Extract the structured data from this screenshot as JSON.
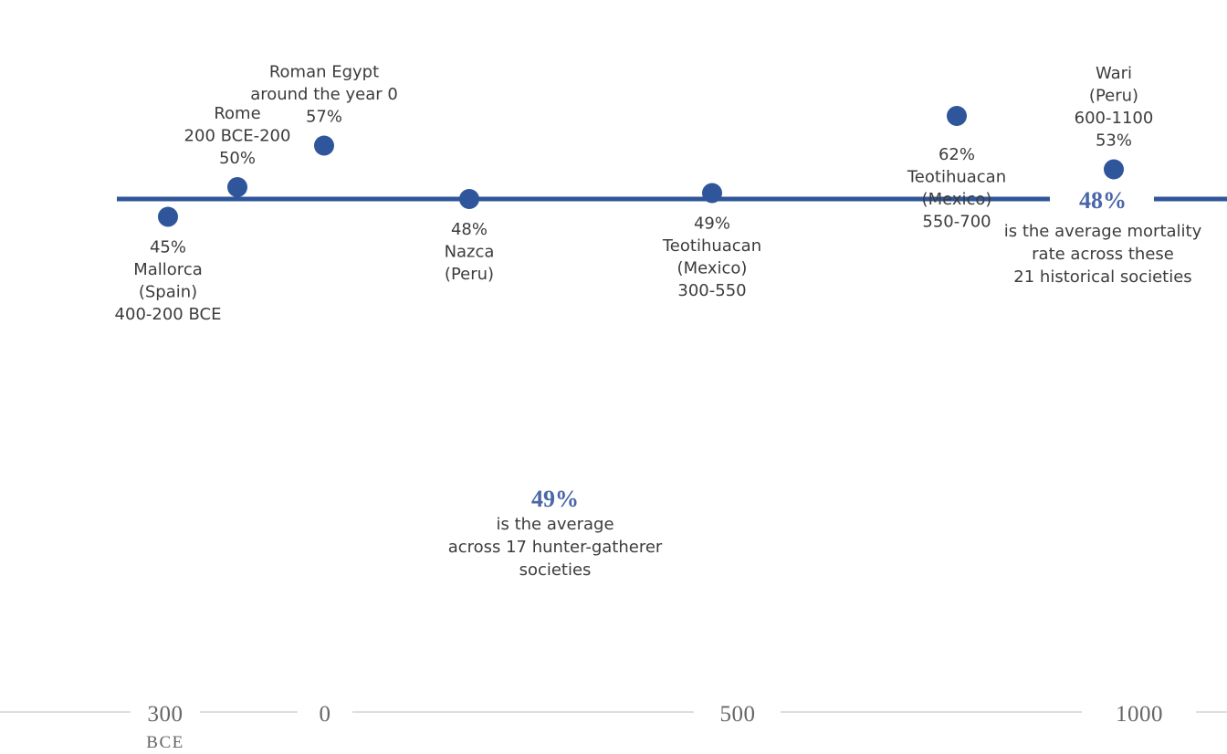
{
  "chart_data": {
    "type": "scatter",
    "x_ticks": [
      "300",
      "0",
      "500",
      "1000"
    ],
    "x_tick_sub": "BCE",
    "colors": {
      "point": "#2f559a",
      "line": "#2f559a",
      "highlight": "#4a66a8",
      "axis": "#bdbdbd"
    },
    "points": [
      {
        "value": 45,
        "lines": [
          "45%",
          "Mallorca",
          "(Spain)",
          "400-200 BCE"
        ]
      },
      {
        "value": 50,
        "lines": [
          "Rome",
          "200 BCE-200",
          "50%"
        ]
      },
      {
        "value": 57,
        "lines": [
          "Roman Egypt",
          "around the year 0",
          "57%"
        ]
      },
      {
        "value": 48,
        "lines": [
          "48%",
          "Nazca",
          "(Peru)"
        ]
      },
      {
        "value": 49,
        "lines": [
          "49%",
          "Teotihuacan",
          "(Mexico)",
          "300-550"
        ]
      },
      {
        "value": 62,
        "lines": [
          "62%",
          "Teotihuacan",
          "(Mexico)",
          "550-700"
        ]
      },
      {
        "value": 53,
        "lines": [
          "Wari",
          "(Peru)",
          "600-1100",
          "53%"
        ]
      }
    ],
    "averages": [
      {
        "value": "48%",
        "text": [
          "is the average mortality",
          "rate across these",
          "21 historical societies"
        ]
      },
      {
        "value": "49%",
        "text": [
          "is the average",
          "across 17 hunter-gatherer",
          "societies"
        ]
      }
    ]
  }
}
